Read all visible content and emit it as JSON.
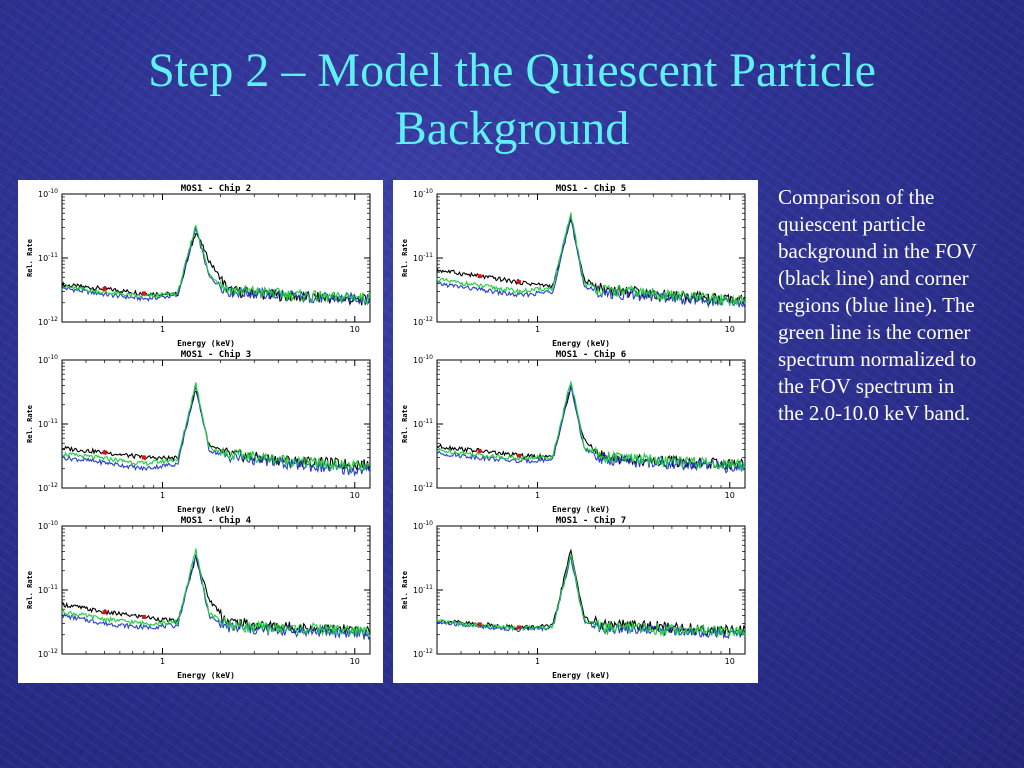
{
  "slide": {
    "title_line1": "Step 2 – Model the Quiescent Particle",
    "title_line2": "Background",
    "caption": "Comparison of the quiescent particle background in the FOV (black line) and corner regions (blue line).  The green line is the corner spectrum normalized to the FOV spectrum in the 2.0-10.0 keV band."
  },
  "colors": {
    "title": "#5ef0f2",
    "background": "#2e3293",
    "fov_line": "#000000",
    "corner_line": "#2a3fd0",
    "normalized_line": "#1fcf3a",
    "marker": "#e01010"
  },
  "chart_data": [
    {
      "type": "line",
      "title": "MOS1 - Chip 2",
      "xlabel": "Energy (keV)",
      "ylabel": "Rel. Rate",
      "xscale": "log",
      "yscale": "log",
      "xlim": [
        0.3,
        12
      ],
      "ylim": [
        1e-12,
        1e-10
      ],
      "x_tick_labels": [
        "1",
        "10"
      ],
      "y_tick_labels": [
        "10-12",
        "10-11",
        "10-10"
      ],
      "series": [
        {
          "color": "black",
          "x": [
            0.3,
            0.5,
            0.8,
            1.2,
            1.49,
            1.75,
            2.2,
            3,
            5,
            8,
            10,
            12
          ],
          "y": [
            3.8e-12,
            3.3e-12,
            2.8e-12,
            2.7e-12,
            2.6e-11,
            9e-12,
            3.1e-12,
            2.8e-12,
            2.5e-12,
            2.3e-12,
            2.2e-12,
            2.2e-12
          ]
        },
        {
          "color": "blue",
          "x": [
            0.3,
            0.5,
            0.8,
            1.2,
            1.49,
            1.75,
            2.2,
            3,
            5,
            8,
            10,
            12
          ],
          "y": [
            3.4e-12,
            2.7e-12,
            2.3e-12,
            2.6e-12,
            2.9e-11,
            5e-12,
            3e-12,
            2.8e-12,
            2.5e-12,
            2.3e-12,
            2.4e-12,
            2.2e-12
          ]
        },
        {
          "color": "green",
          "x": [
            0.3,
            0.5,
            0.8,
            1.2,
            1.49,
            1.75,
            2.2,
            3,
            5,
            8,
            10,
            12
          ],
          "y": [
            3.6e-12,
            2.9e-12,
            2.5e-12,
            2.8e-12,
            3.3e-11,
            5.5e-12,
            3.2e-12,
            3e-12,
            2.6e-12,
            2.4e-12,
            2.5e-12,
            2.3e-12
          ]
        }
      ]
    },
    {
      "type": "line",
      "title": "MOS1 - Chip 3",
      "xlabel": "Energy (keV)",
      "ylabel": "Rel. Rate",
      "xscale": "log",
      "yscale": "log",
      "xlim": [
        0.3,
        12
      ],
      "ylim": [
        1e-12,
        1e-10
      ],
      "x_tick_labels": [
        "1",
        "10"
      ],
      "y_tick_labels": [
        "10-12",
        "10-11",
        "10-10"
      ],
      "series": [
        {
          "color": "black",
          "x": [
            0.3,
            0.5,
            0.8,
            1.2,
            1.49,
            1.75,
            2.2,
            3,
            5,
            8,
            10,
            12
          ],
          "y": [
            4.2e-12,
            3.6e-12,
            3e-12,
            2.9e-12,
            3.5e-11,
            4.5e-12,
            3.4e-12,
            3e-12,
            2.6e-12,
            2.4e-12,
            2.3e-12,
            2.3e-12
          ]
        },
        {
          "color": "blue",
          "x": [
            0.3,
            0.5,
            0.8,
            1.2,
            1.49,
            1.75,
            2.2,
            3,
            5,
            8,
            10,
            12
          ],
          "y": [
            3e-12,
            2.5e-12,
            2e-12,
            2.4e-12,
            3.8e-11,
            3.9e-12,
            3.1e-12,
            2.8e-12,
            2.3e-12,
            2e-12,
            1.9e-12,
            1.9e-12
          ]
        },
        {
          "color": "green",
          "x": [
            0.3,
            0.5,
            0.8,
            1.2,
            1.49,
            1.75,
            2.2,
            3,
            5,
            8,
            10,
            12
          ],
          "y": [
            3.4e-12,
            2.9e-12,
            2.4e-12,
            2.8e-12,
            4.4e-11,
            4.2e-12,
            3.4e-12,
            3.1e-12,
            2.6e-12,
            2.3e-12,
            2.2e-12,
            2.1e-12
          ]
        }
      ]
    },
    {
      "type": "line",
      "title": "MOS1 - Chip 4",
      "xlabel": "Energy (keV)",
      "ylabel": "Rel. Rate",
      "xscale": "log",
      "yscale": "log",
      "xlim": [
        0.3,
        12
      ],
      "ylim": [
        1e-12,
        1e-10
      ],
      "x_tick_labels": [
        "1",
        "10"
      ],
      "y_tick_labels": [
        "10-12",
        "10-11",
        "10-10"
      ],
      "series": [
        {
          "color": "black",
          "x": [
            0.3,
            0.5,
            0.8,
            1.2,
            1.49,
            1.75,
            2.2,
            3,
            5,
            8,
            10,
            12
          ],
          "y": [
            6e-12,
            4.5e-12,
            3.8e-12,
            3.2e-12,
            3.3e-11,
            7e-12,
            3.2e-12,
            2.8e-12,
            2.6e-12,
            2.4e-12,
            2.3e-12,
            2.3e-12
          ]
        },
        {
          "color": "blue",
          "x": [
            0.3,
            0.5,
            0.8,
            1.2,
            1.49,
            1.75,
            2.2,
            3,
            5,
            8,
            10,
            12
          ],
          "y": [
            4e-12,
            3e-12,
            2.6e-12,
            2.8e-12,
            3.6e-11,
            3.8e-12,
            2.6e-12,
            2.4e-12,
            2.3e-12,
            2.2e-12,
            2.1e-12,
            2e-12
          ]
        },
        {
          "color": "green",
          "x": [
            0.3,
            0.5,
            0.8,
            1.2,
            1.49,
            1.75,
            2.2,
            3,
            5,
            8,
            10,
            12
          ],
          "y": [
            4.6e-12,
            3.5e-12,
            3e-12,
            3.1e-12,
            4.2e-11,
            4.2e-12,
            2.9e-12,
            2.6e-12,
            2.5e-12,
            2.4e-12,
            2.3e-12,
            2.2e-12
          ]
        }
      ]
    },
    {
      "type": "line",
      "title": "MOS1 - Chip 5",
      "xlabel": "Energy (keV)",
      "ylabel": "Rel. Rate",
      "xscale": "log",
      "yscale": "log",
      "xlim": [
        0.3,
        12
      ],
      "ylim": [
        1e-12,
        1e-10
      ],
      "x_tick_labels": [
        "1",
        "10"
      ],
      "y_tick_labels": [
        "10-12",
        "10-11",
        "10-10"
      ],
      "series": [
        {
          "color": "black",
          "x": [
            0.3,
            0.5,
            0.8,
            1.2,
            1.49,
            1.75,
            2.2,
            3,
            5,
            8,
            10,
            12
          ],
          "y": [
            6.5e-12,
            5.2e-12,
            4.2e-12,
            3.6e-12,
            4e-11,
            4.5e-12,
            3.3e-12,
            3e-12,
            2.6e-12,
            2.3e-12,
            2.2e-12,
            2.1e-12
          ]
        },
        {
          "color": "blue",
          "x": [
            0.3,
            0.5,
            0.8,
            1.2,
            1.49,
            1.75,
            2.2,
            3,
            5,
            8,
            10,
            12
          ],
          "y": [
            4e-12,
            3.2e-12,
            2.6e-12,
            3e-12,
            4.3e-11,
            3.6e-12,
            2.8e-12,
            2.7e-12,
            2.4e-12,
            2.1e-12,
            2e-12,
            1.9e-12
          ]
        },
        {
          "color": "green",
          "x": [
            0.3,
            0.5,
            0.8,
            1.2,
            1.49,
            1.75,
            2.2,
            3,
            5,
            8,
            10,
            12
          ],
          "y": [
            4.6e-12,
            3.7e-12,
            3e-12,
            3.4e-12,
            5e-11,
            4e-12,
            3.1e-12,
            3e-12,
            2.6e-12,
            2.3e-12,
            2.2e-12,
            2.1e-12
          ]
        }
      ]
    },
    {
      "type": "line",
      "title": "MOS1 - Chip 6",
      "xlabel": "Energy (keV)",
      "ylabel": "Rel. Rate",
      "xscale": "log",
      "yscale": "log",
      "xlim": [
        0.3,
        12
      ],
      "ylim": [
        1e-12,
        1e-10
      ],
      "x_tick_labels": [
        "1",
        "10"
      ],
      "y_tick_labels": [
        "10-12",
        "10-11",
        "10-10"
      ],
      "series": [
        {
          "color": "black",
          "x": [
            0.3,
            0.5,
            0.8,
            1.2,
            1.49,
            1.75,
            2.2,
            3,
            5,
            8,
            10,
            12
          ],
          "y": [
            4.5e-12,
            3.8e-12,
            3.2e-12,
            3e-12,
            3.7e-11,
            5.5e-12,
            3e-12,
            2.8e-12,
            2.6e-12,
            2.4e-12,
            2.3e-12,
            2.3e-12
          ]
        },
        {
          "color": "blue",
          "x": [
            0.3,
            0.5,
            0.8,
            1.2,
            1.49,
            1.75,
            2.2,
            3,
            5,
            8,
            10,
            12
          ],
          "y": [
            3.5e-12,
            3e-12,
            2.6e-12,
            2.8e-12,
            4e-11,
            4e-12,
            2.8e-12,
            2.6e-12,
            2.4e-12,
            2.2e-12,
            2.1e-12,
            2.1e-12
          ]
        },
        {
          "color": "green",
          "x": [
            0.3,
            0.5,
            0.8,
            1.2,
            1.49,
            1.75,
            2.2,
            3,
            5,
            8,
            10,
            12
          ],
          "y": [
            3.9e-12,
            3.3e-12,
            2.9e-12,
            3.1e-12,
            4.8e-11,
            4.4e-12,
            3.1e-12,
            2.9e-12,
            2.6e-12,
            2.4e-12,
            2.3e-12,
            2.3e-12
          ]
        }
      ]
    },
    {
      "type": "line",
      "title": "MOS1 - Chip 7",
      "xlabel": "Energy (keV)",
      "ylabel": "Rel. Rate",
      "xscale": "log",
      "yscale": "log",
      "xlim": [
        0.3,
        12
      ],
      "ylim": [
        1e-12,
        1e-10
      ],
      "x_tick_labels": [
        "1",
        "10"
      ],
      "y_tick_labels": [
        "10-12",
        "10-11",
        "10-10"
      ],
      "series": [
        {
          "color": "black",
          "x": [
            0.3,
            0.5,
            0.8,
            1.2,
            1.49,
            1.75,
            2.2,
            3,
            5,
            8,
            10,
            12
          ],
          "y": [
            3.3e-12,
            2.9e-12,
            2.6e-12,
            2.7e-12,
            4.2e-11,
            3.6e-12,
            2.8e-12,
            2.8e-12,
            2.6e-12,
            2.4e-12,
            2.3e-12,
            2.3e-12
          ]
        },
        {
          "color": "blue",
          "x": [
            0.3,
            0.5,
            0.8,
            1.2,
            1.49,
            1.75,
            2.2,
            3,
            5,
            8,
            10,
            12
          ],
          "y": [
            3.1e-12,
            2.7e-12,
            2.4e-12,
            2.6e-12,
            3.3e-11,
            3.1e-12,
            2.5e-12,
            2.5e-12,
            2.3e-12,
            2.2e-12,
            2.1e-12,
            2.1e-12
          ]
        },
        {
          "color": "green",
          "x": [
            0.3,
            0.5,
            0.8,
            1.2,
            1.49,
            1.75,
            2.2,
            3,
            5,
            8,
            10,
            12
          ],
          "y": [
            3.2e-12,
            2.8e-12,
            2.5e-12,
            2.7e-12,
            3.6e-11,
            3.3e-12,
            2.6e-12,
            2.6e-12,
            2.4e-12,
            2.3e-12,
            2.2e-12,
            2.2e-12
          ]
        }
      ]
    }
  ]
}
